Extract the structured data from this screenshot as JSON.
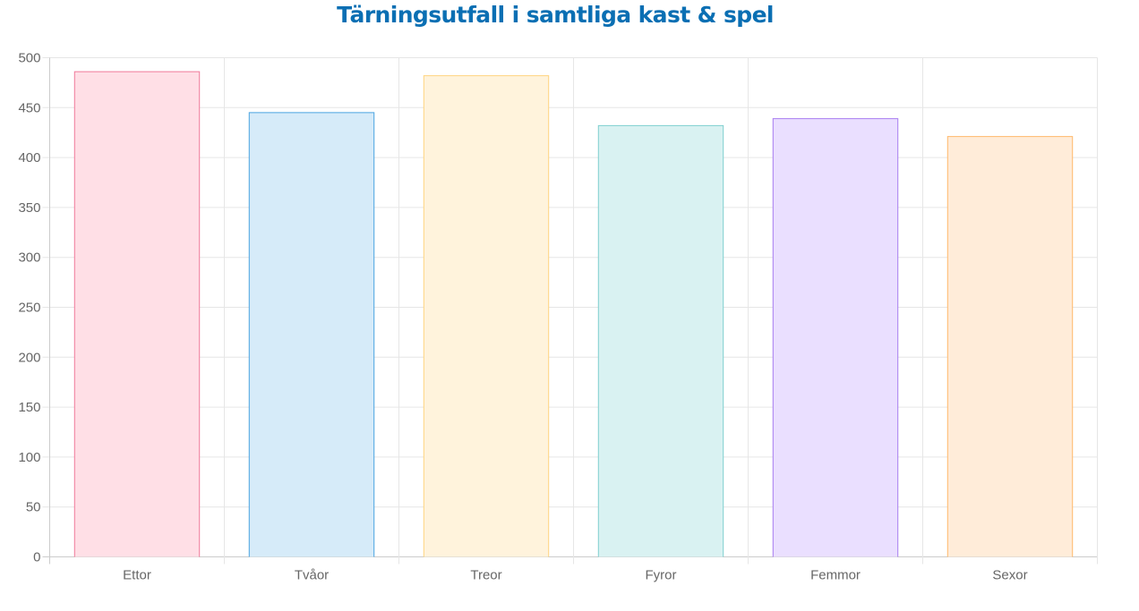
{
  "chart_data": {
    "type": "bar",
    "title": "Tärningsutfall i samtliga kast & spel",
    "categories": [
      "Ettor",
      "Tvåor",
      "Treor",
      "Fyror",
      "Femmor",
      "Sexor"
    ],
    "values": [
      486,
      445,
      482,
      432,
      439,
      421
    ],
    "ylim": [
      0,
      500
    ],
    "yticks": [
      0,
      50,
      100,
      150,
      200,
      250,
      300,
      350,
      400,
      450,
      500
    ],
    "grid": true,
    "legend": "none",
    "colors": {
      "fills": [
        "#ffdfe6",
        "#d6ebf9",
        "#fff3dc",
        "#d9f2f2",
        "#eadfff",
        "#ffecd9"
      ],
      "borders": [
        "#f07a9a",
        "#4aa3e0",
        "#ffd47e",
        "#7fcfcf",
        "#a77cf0",
        "#ffb86a"
      ],
      "grid": "#e6e6e6",
      "axis": "#cccccc",
      "tick_text": "#666666",
      "title": "#0a6fb3"
    }
  }
}
